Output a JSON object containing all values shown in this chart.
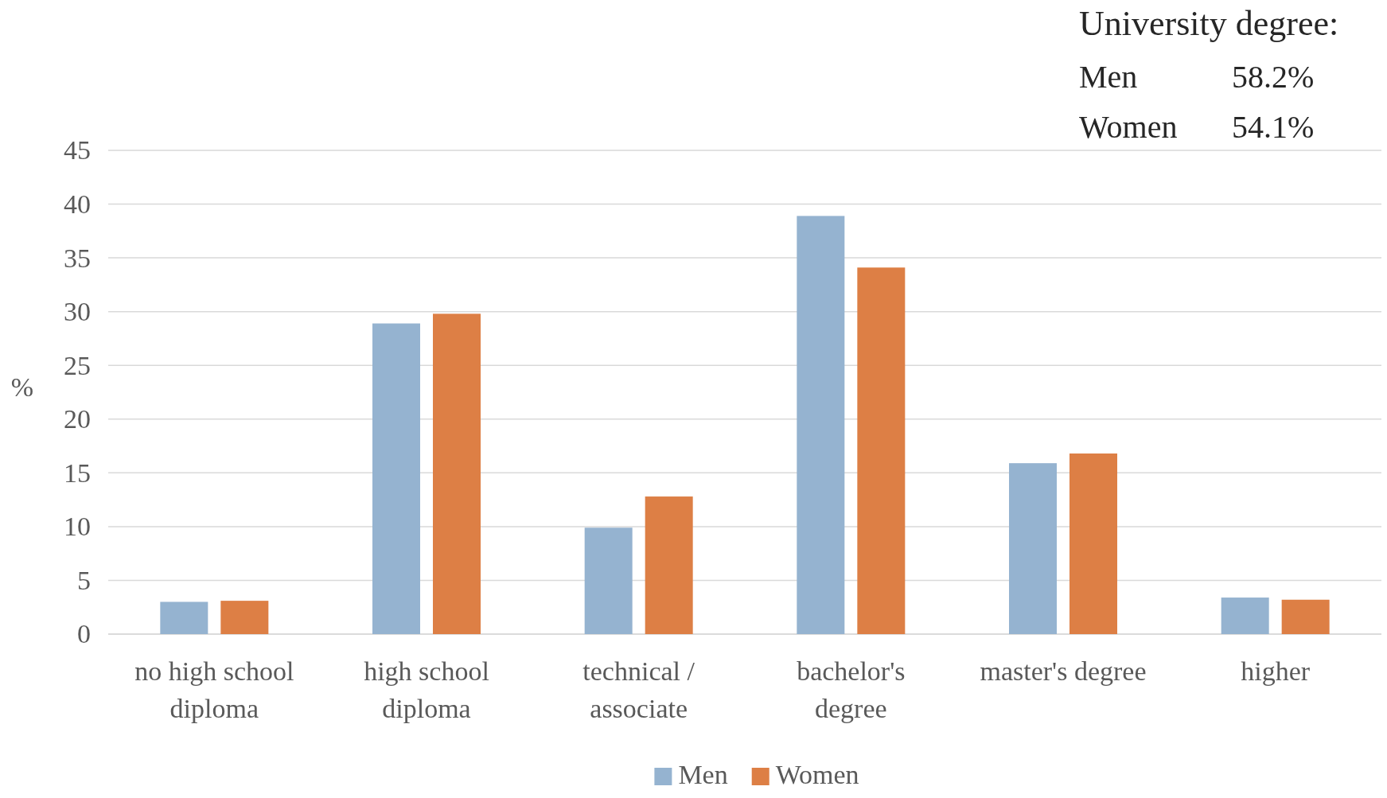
{
  "chart_data": {
    "type": "bar",
    "ylabel": "%",
    "categories": [
      "no high school diploma",
      "high school diploma",
      "technical / associate",
      "bachelor's degree",
      "master's degree",
      "higher"
    ],
    "series": [
      {
        "name": "Men",
        "color": "#95b3d0",
        "values": [
          3.0,
          28.9,
          9.9,
          38.9,
          15.9,
          3.4
        ]
      },
      {
        "name": "Women",
        "color": "#dd7f45",
        "values": [
          3.1,
          29.8,
          12.8,
          34.1,
          16.8,
          3.2
        ]
      }
    ],
    "ylim": [
      0,
      45
    ],
    "yticks": [
      0,
      5,
      10,
      15,
      20,
      25,
      30,
      35,
      40,
      45
    ],
    "grid": "y",
    "legend": "bottom",
    "annotations": [
      "University degree:",
      "Men",
      "58.2%",
      "Women",
      "54.1%"
    ]
  }
}
